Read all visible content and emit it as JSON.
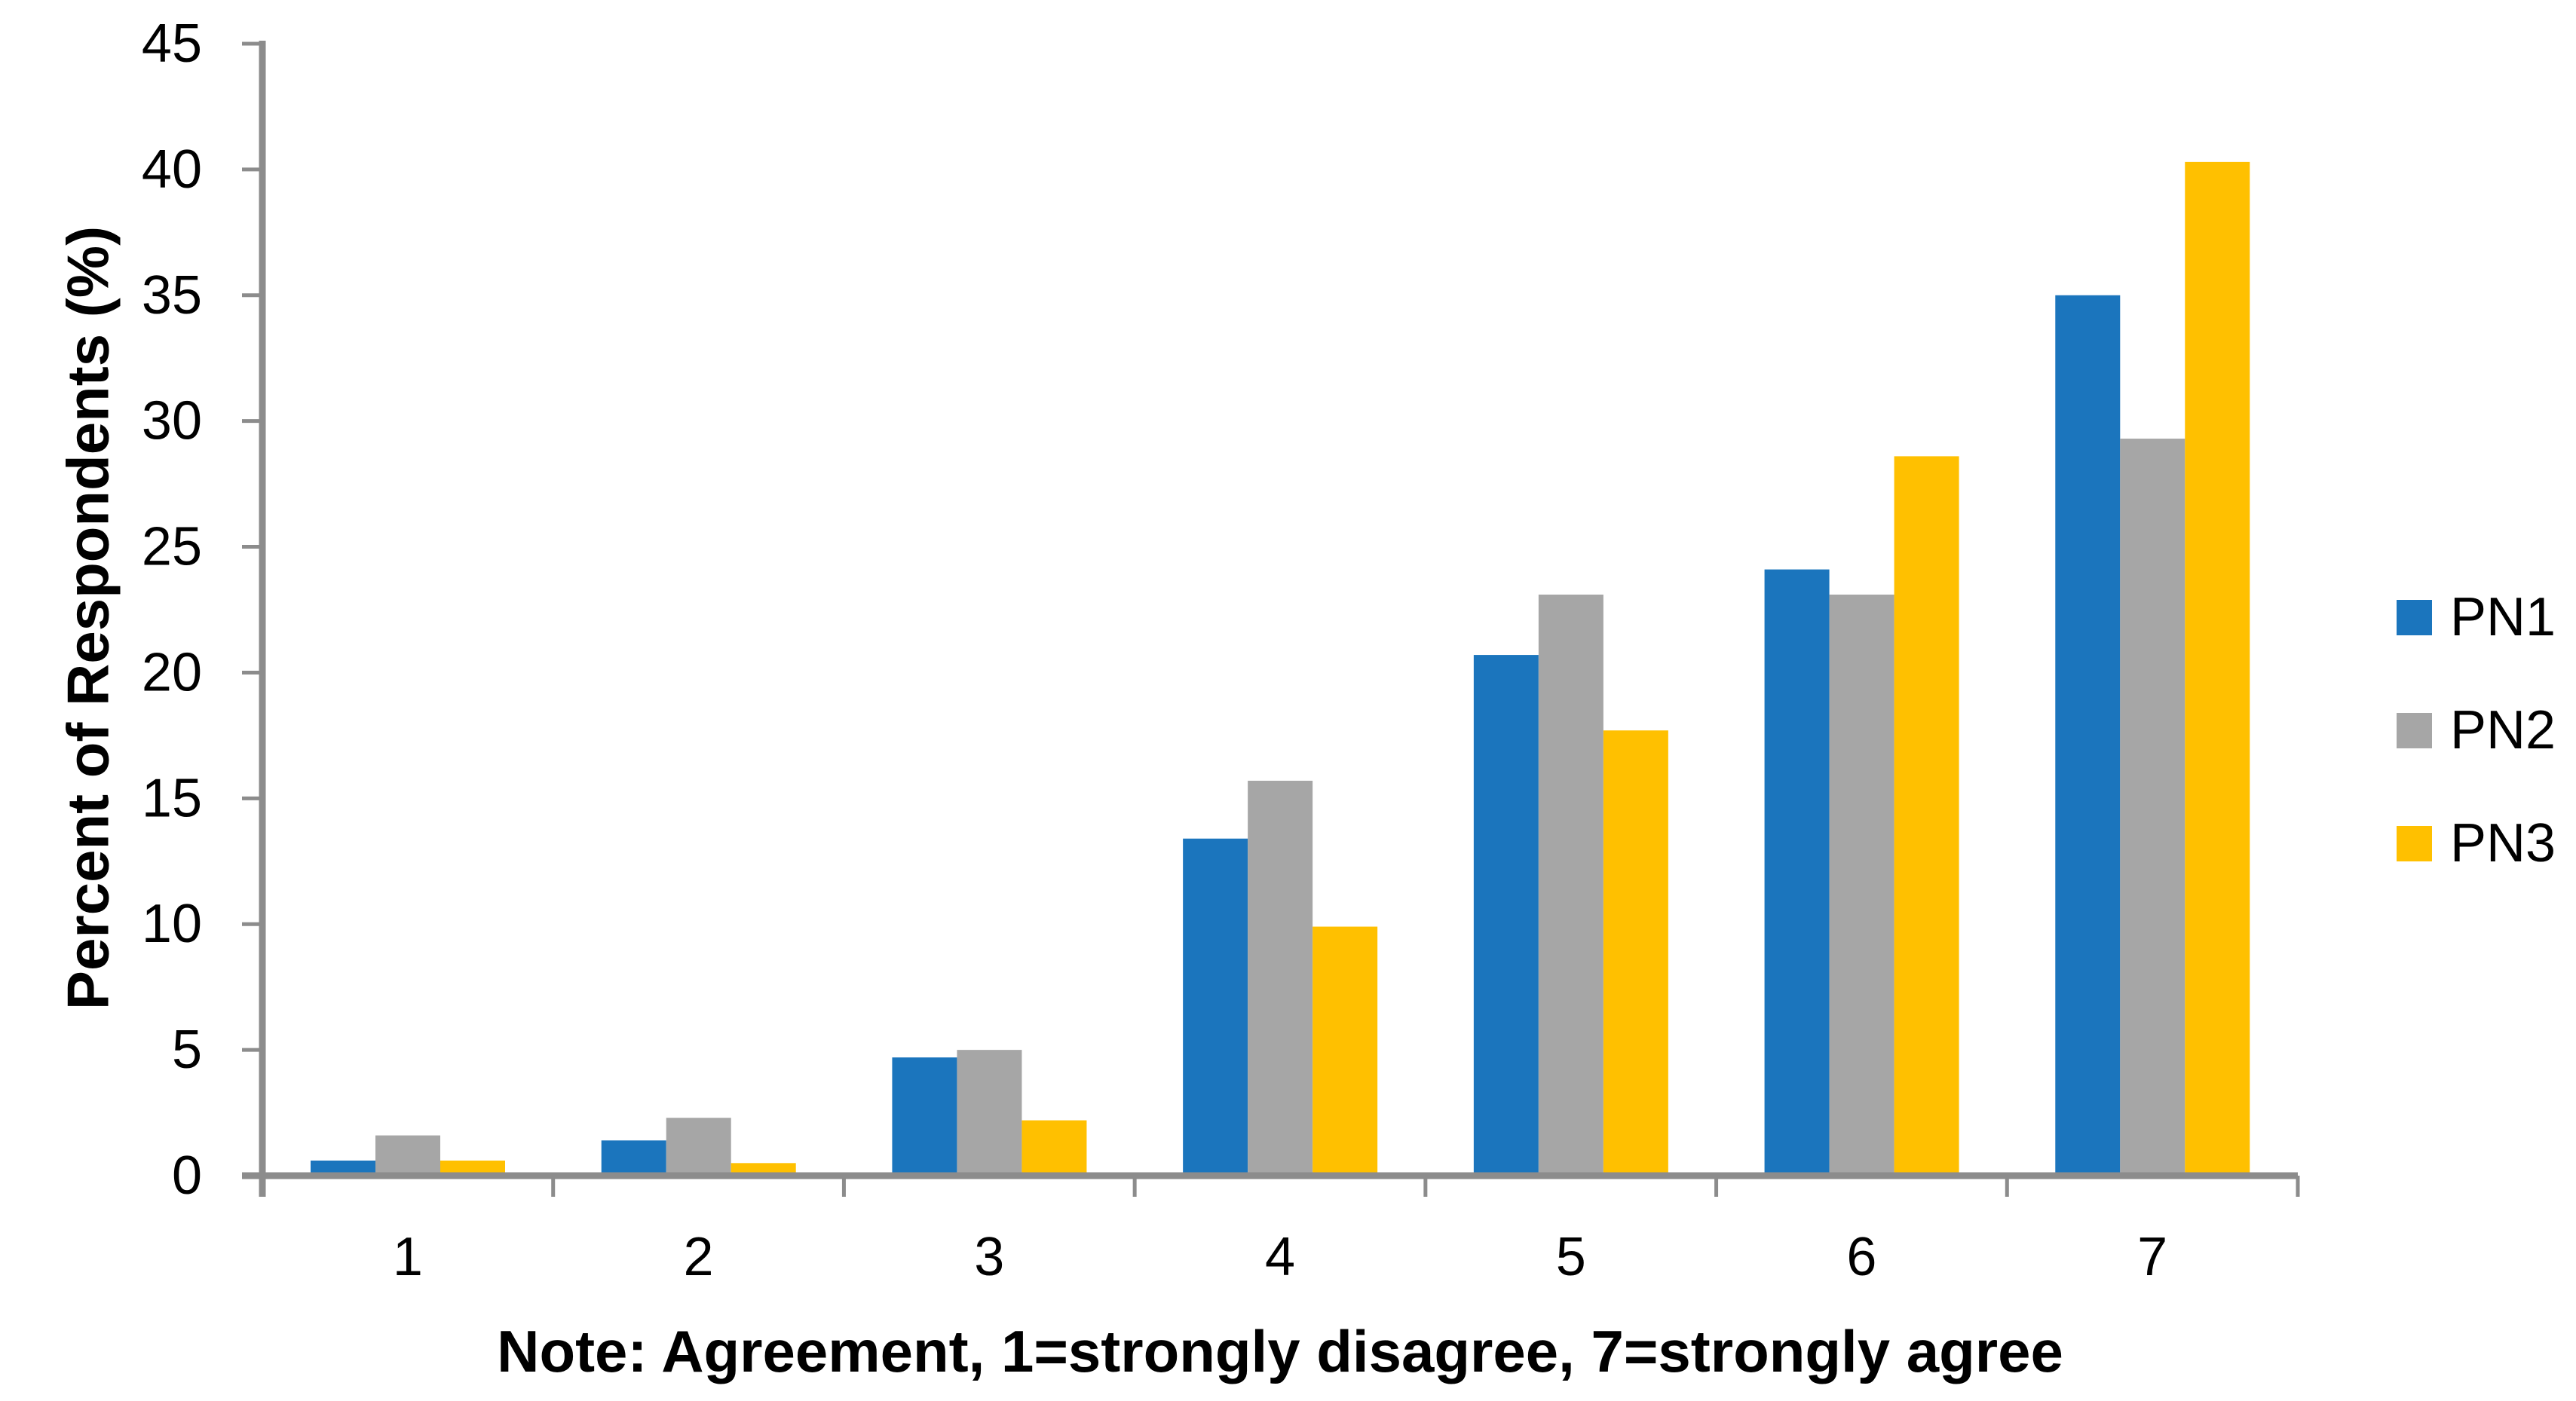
{
  "chart_data": {
    "type": "bar",
    "title": "",
    "categories": [
      "1",
      "2",
      "3",
      "4",
      "5",
      "6",
      "7"
    ],
    "series": [
      {
        "name": "PN1",
        "color": "#1B75BD",
        "values": [
          0.6,
          1.4,
          4.7,
          13.4,
          20.7,
          24.1,
          35.0
        ]
      },
      {
        "name": "PN2",
        "color": "#A6A6A6",
        "values": [
          1.6,
          2.3,
          5.0,
          15.7,
          23.1,
          23.1,
          29.3
        ]
      },
      {
        "name": "PN3",
        "color": "#FFC000",
        "values": [
          0.6,
          0.5,
          2.2,
          9.9,
          17.7,
          28.6,
          40.3
        ]
      }
    ],
    "xlabel": "Note: Agreement, 1=strongly disagree, 7=strongly agree",
    "ylabel": "Percent of Respondents (%)",
    "ylim": [
      0,
      45
    ],
    "ytick_step": 5,
    "ytick_labels": [
      "0",
      "5",
      "10",
      "15",
      "20",
      "25",
      "30",
      "35",
      "40",
      "45"
    ],
    "grid": false,
    "legend_position": "right",
    "axis_color": "#8C8C8C",
    "text_color": "#000000",
    "background_color": "#FFFFFF"
  }
}
